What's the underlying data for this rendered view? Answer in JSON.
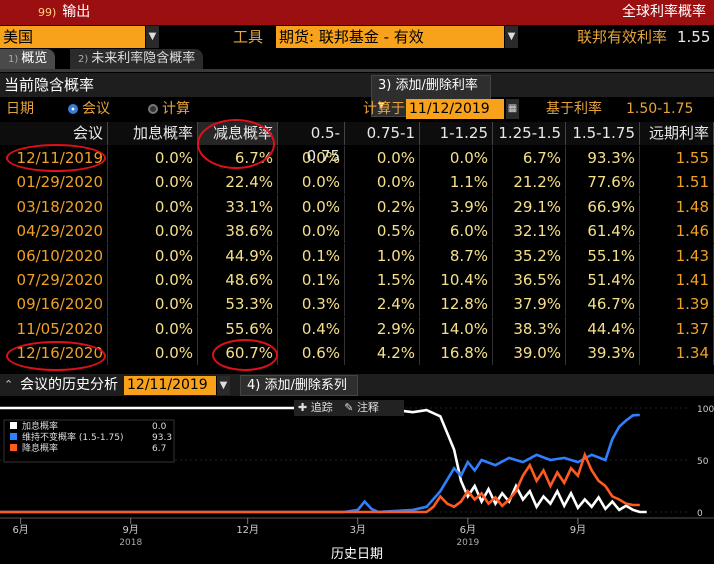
{
  "topbar": {
    "badge": "99)",
    "title": "输出",
    "right": "全球利率概率"
  },
  "row2": {
    "country": "美国",
    "tool_label": "工具",
    "tool_value": "期货: 联邦基金 - 有效",
    "eff_label": "联邦有效利率",
    "eff_value": "1.55"
  },
  "tabs": [
    {
      "num": "1)",
      "label": "概览"
    },
    {
      "num": "2)",
      "label": "未来利率隐含概率"
    }
  ],
  "section": {
    "title": "当前隐含概率",
    "add_btn": "3) 添加/删除利率 ▾"
  },
  "options": {
    "date_label": "日期",
    "opt_meeting": "会议",
    "opt_calc": "计算",
    "calc_on_label": "计算于",
    "calc_on_value": "11/12/2019",
    "base_label": "基于利率",
    "base_value": "1.50-1.75"
  },
  "table": {
    "headers": [
      "会议",
      "加息概率",
      "减息概率",
      "0.5-0.75",
      "0.75-1",
      "1-1.25",
      "1.25-1.5",
      "1.5-1.75",
      "远期利率"
    ],
    "rows": [
      [
        "12/11/2019",
        "0.0%",
        "6.7%",
        "0.0%",
        "0.0%",
        "0.0%",
        "6.7%",
        "93.3%",
        "1.55"
      ],
      [
        "01/29/2020",
        "0.0%",
        "22.4%",
        "0.0%",
        "0.0%",
        "1.1%",
        "21.2%",
        "77.6%",
        "1.51"
      ],
      [
        "03/18/2020",
        "0.0%",
        "33.1%",
        "0.0%",
        "0.2%",
        "3.9%",
        "29.1%",
        "66.9%",
        "1.48"
      ],
      [
        "04/29/2020",
        "0.0%",
        "38.6%",
        "0.0%",
        "0.5%",
        "6.0%",
        "32.1%",
        "61.4%",
        "1.46"
      ],
      [
        "06/10/2020",
        "0.0%",
        "44.9%",
        "0.1%",
        "1.0%",
        "8.7%",
        "35.2%",
        "55.1%",
        "1.43"
      ],
      [
        "07/29/2020",
        "0.0%",
        "48.6%",
        "0.1%",
        "1.5%",
        "10.4%",
        "36.5%",
        "51.4%",
        "1.41"
      ],
      [
        "09/16/2020",
        "0.0%",
        "53.3%",
        "0.3%",
        "2.4%",
        "12.8%",
        "37.9%",
        "46.7%",
        "1.39"
      ],
      [
        "11/05/2020",
        "0.0%",
        "55.6%",
        "0.4%",
        "2.9%",
        "14.0%",
        "38.3%",
        "44.4%",
        "1.37"
      ],
      [
        "12/16/2020",
        "0.0%",
        "60.7%",
        "0.6%",
        "4.2%",
        "16.8%",
        "39.0%",
        "39.3%",
        "1.34"
      ]
    ]
  },
  "history": {
    "title": "会议的历史分析",
    "date": "12/11/2019",
    "add_btn": "4) 添加/删除系列 ▾",
    "track_btn": "追踪",
    "note_btn": "注释",
    "xlabel": "历史日期"
  },
  "chart_data": {
    "type": "line",
    "xlabel": "历史日期",
    "x_ticks": [
      "6月",
      "9月",
      "12月",
      "3月",
      "6月",
      "9月"
    ],
    "year_labels": [
      "2018",
      "2019"
    ],
    "y_ticks": [
      0,
      50,
      100
    ],
    "ylim": [
      0,
      100
    ],
    "legend": [
      {
        "name": "加息概率",
        "value": "0.0",
        "color": "#ffffff"
      },
      {
        "name": "维持不变概率 (1.5-1.75)",
        "value": "93.3",
        "color": "#2f7fff"
      },
      {
        "name": "降息概率",
        "value": "6.7",
        "color": "#ff5a1f"
      }
    ],
    "series": [
      {
        "name": "加息概率",
        "color": "#ffffff",
        "points": [
          [
            0,
            100
          ],
          [
            20,
            100
          ],
          [
            40,
            100
          ],
          [
            55,
            100
          ],
          [
            60,
            96
          ],
          [
            62,
            98
          ],
          [
            64,
            92
          ],
          [
            66,
            60
          ],
          [
            67,
            30
          ],
          [
            68,
            15
          ],
          [
            69,
            25
          ],
          [
            70,
            10
          ],
          [
            71,
            22
          ],
          [
            72,
            8
          ],
          [
            73,
            18
          ],
          [
            74,
            10
          ],
          [
            75,
            25
          ],
          [
            76,
            12
          ],
          [
            77,
            20
          ],
          [
            78,
            5
          ],
          [
            79,
            15
          ],
          [
            80,
            8
          ],
          [
            81,
            20
          ],
          [
            82,
            6
          ],
          [
            83,
            18
          ],
          [
            84,
            4
          ],
          [
            85,
            12
          ],
          [
            86,
            5
          ],
          [
            87,
            14
          ],
          [
            88,
            3
          ],
          [
            89,
            10
          ],
          [
            90,
            2
          ],
          [
            91,
            6
          ],
          [
            92,
            2
          ],
          [
            93,
            0
          ],
          [
            94,
            0
          ]
        ]
      },
      {
        "name": "维持不变概率 (1.5-1.75)",
        "color": "#2f7fff",
        "points": [
          [
            0,
            0
          ],
          [
            50,
            0
          ],
          [
            52,
            2
          ],
          [
            53,
            10
          ],
          [
            54,
            3
          ],
          [
            55,
            0
          ],
          [
            60,
            2
          ],
          [
            62,
            5
          ],
          [
            64,
            20
          ],
          [
            66,
            42
          ],
          [
            67,
            35
          ],
          [
            68,
            48
          ],
          [
            69,
            40
          ],
          [
            70,
            50
          ],
          [
            72,
            45
          ],
          [
            74,
            52
          ],
          [
            76,
            48
          ],
          [
            78,
            55
          ],
          [
            80,
            50
          ],
          [
            82,
            52
          ],
          [
            84,
            48
          ],
          [
            86,
            55
          ],
          [
            88,
            50
          ],
          [
            89,
            70
          ],
          [
            90,
            82
          ],
          [
            91,
            88
          ],
          [
            92,
            93
          ],
          [
            93,
            93.3
          ]
        ]
      },
      {
        "name": "降息概率",
        "color": "#ff5a1f",
        "points": [
          [
            0,
            0
          ],
          [
            55,
            0
          ],
          [
            62,
            0
          ],
          [
            63,
            5
          ],
          [
            64,
            15
          ],
          [
            65,
            8
          ],
          [
            66,
            5
          ],
          [
            67,
            10
          ],
          [
            68,
            20
          ],
          [
            69,
            12
          ],
          [
            70,
            18
          ],
          [
            71,
            8
          ],
          [
            72,
            14
          ],
          [
            73,
            6
          ],
          [
            74,
            12
          ],
          [
            75,
            20
          ],
          [
            76,
            35
          ],
          [
            77,
            45
          ],
          [
            78,
            30
          ],
          [
            79,
            40
          ],
          [
            80,
            25
          ],
          [
            81,
            38
          ],
          [
            82,
            28
          ],
          [
            83,
            42
          ],
          [
            84,
            35
          ],
          [
            85,
            55
          ],
          [
            86,
            40
          ],
          [
            87,
            30
          ],
          [
            88,
            25
          ],
          [
            89,
            15
          ],
          [
            90,
            12
          ],
          [
            91,
            8
          ],
          [
            92,
            6.7
          ],
          [
            93,
            6.7
          ]
        ]
      }
    ]
  }
}
